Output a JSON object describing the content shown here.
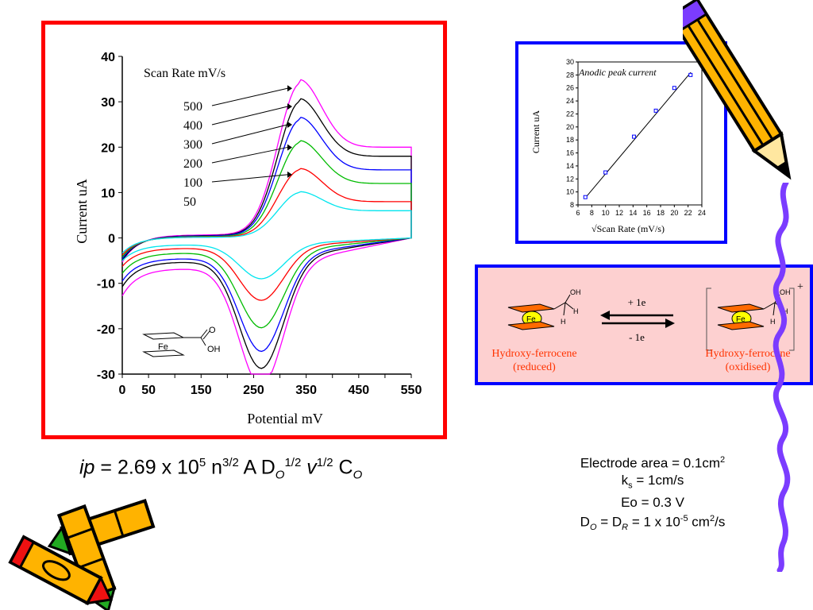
{
  "cv_chart": {
    "type": "line",
    "ylabel": "Current uA",
    "xlabel": "Potential mV",
    "xlim": [
      0,
      550
    ],
    "ylim": [
      -30,
      40
    ],
    "xticks": [
      "0",
      "50",
      "150",
      "250",
      "350",
      "450",
      "550"
    ],
    "yticks": [
      "40",
      "30",
      "20",
      "10",
      "0",
      "-10",
      "-20",
      "-30"
    ],
    "legend_title": "Scan Rate mV/s",
    "molecule_labels": {
      "metal": "Fe",
      "carbonyl": "O",
      "hydroxyl": "OH"
    },
    "series": [
      {
        "name": "500",
        "color": "#ff00ff",
        "ipa": 34,
        "ipc": -26,
        "start_y": -6,
        "end_y": 20,
        "base_offset": 4.5
      },
      {
        "name": "400",
        "color": "#000000",
        "ipa": 30,
        "ipc": -23.5,
        "start_y": -5.5,
        "end_y": 18,
        "base_offset": 3.5
      },
      {
        "name": "300",
        "color": "#0000ff",
        "ipa": 26,
        "ipc": -20.5,
        "start_y": -5,
        "end_y": 15,
        "base_offset": 3
      },
      {
        "name": "200",
        "color": "#00bb00",
        "ipa": 21,
        "ipc": -16.5,
        "start_y": -4.5,
        "end_y": 12,
        "base_offset": 2.2
      },
      {
        "name": "100",
        "color": "#ff0000",
        "ipa": 15,
        "ipc": -11.5,
        "start_y": -4,
        "end_y": 8,
        "base_offset": 1.5
      },
      {
        "name": "50",
        "color": "#00e5ee",
        "ipa": 10,
        "ipc": -7.5,
        "start_y": -3.5,
        "end_y": 6,
        "base_offset": 1
      }
    ]
  },
  "chart_data": {
    "type": "scatter",
    "title": "Anodic peak current",
    "xlabel": "√Scan Rate (mV/s)",
    "ylabel": "Current uA",
    "xlim": [
      6,
      24
    ],
    "ylim": [
      8,
      30
    ],
    "xticks": [
      6,
      8,
      10,
      12,
      14,
      16,
      18,
      20,
      22,
      24
    ],
    "yticks": [
      8,
      10,
      12,
      14,
      16,
      18,
      20,
      22,
      24,
      26,
      28,
      30
    ],
    "points": [
      {
        "x": 7.07,
        "y": 9.2
      },
      {
        "x": 10.0,
        "y": 13.0
      },
      {
        "x": 14.14,
        "y": 18.5
      },
      {
        "x": 17.32,
        "y": 22.5
      },
      {
        "x": 20.0,
        "y": 26.0
      },
      {
        "x": 22.36,
        "y": 28.0
      }
    ],
    "fit_line": {
      "x": [
        7,
        22.4
      ],
      "y": [
        9.0,
        28.4
      ]
    }
  },
  "reaction": {
    "left_label": "Hydroxy-ferrocene",
    "left_state": "(reduced)",
    "right_label": "Hydroxy-ferrocene",
    "right_state": "(oxidised)",
    "forward": "+ 1e",
    "backward": "- 1e",
    "metal": "Fe",
    "oh": "OH",
    "h": "H",
    "charge": "+"
  },
  "formula": {
    "ip": "ip",
    "eq": " = 2.69 x 10",
    "exp1": "5",
    "n": " n",
    "exp2": "3/2",
    "a": " A D",
    "sub_o": "O",
    "exp3": "1/2",
    "v": "v",
    "exp4": "1/2",
    "c": " C",
    "sub_o2": "O"
  },
  "params": {
    "area_text": "Electrode area = 0.1cm",
    "area_sup": "2",
    "ks_k": "k",
    "ks_sub": "s",
    "ks_rest": " = 1cm/s",
    "eo": "Eo = 0.3 V",
    "d_d": "D",
    "d_sub_o": "O",
    "d_eq": " = D",
    "d_sub_r": "R",
    "d_val": " = 1 x 10",
    "d_exp": "-5",
    "d_unit": " cm",
    "d_unit_sup": "2",
    "d_tail": "/s"
  },
  "colors": {
    "cv_frame": "#ff0000",
    "panel_frame": "#0000ff",
    "reaction_bg": "#fdd0d0",
    "reaction_label": "#ff3300",
    "squiggle": "#7b3cff",
    "pencil_body": "#ffb300"
  },
  "decorations": [
    "pencil-clipart",
    "crayon-clipart",
    "wavy-line"
  ]
}
